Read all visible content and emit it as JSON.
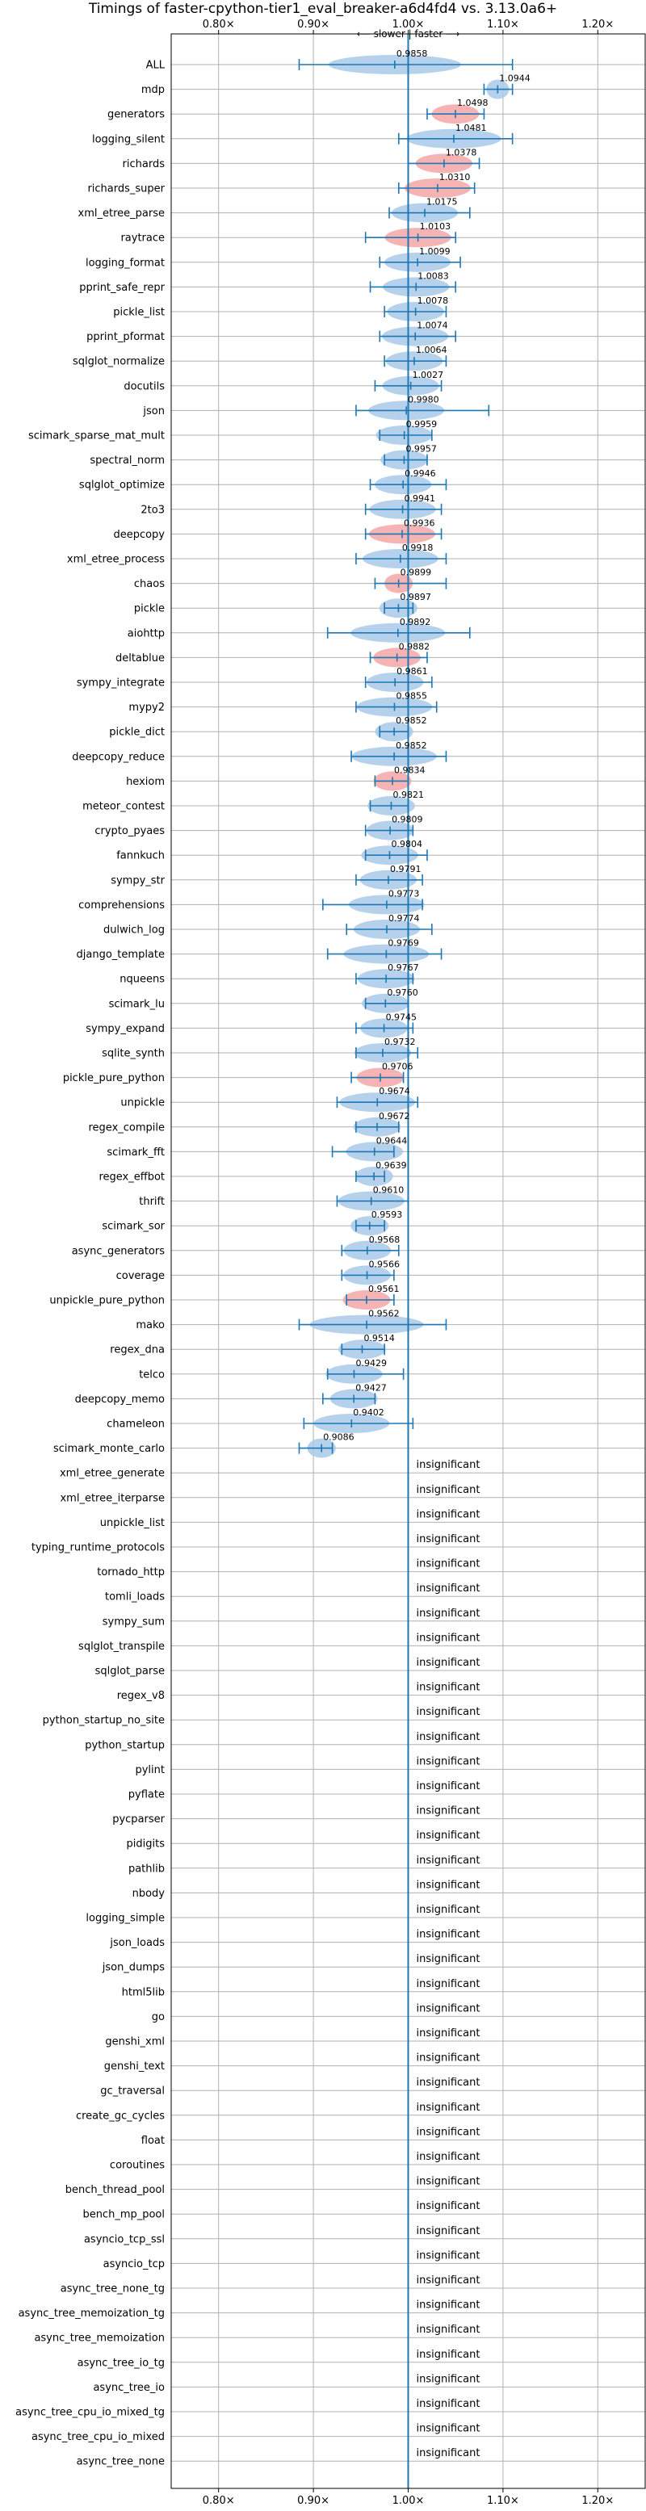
{
  "chart_data": {
    "type": "violin",
    "title": "Timings of faster-cpython-tier1_eval_breaker-a6d4fd4 vs. 3.13.0a6+",
    "direction_label": "⟵ slower | faster ⟶",
    "xlim": [
      0.75,
      1.25
    ],
    "x_ticks": [
      {
        "value": 0.8,
        "label": "0.80×"
      },
      {
        "value": 0.9,
        "label": "0.90×"
      },
      {
        "value": 1.0,
        "label": "1.00×"
      },
      {
        "value": 1.1,
        "label": "1.10×"
      },
      {
        "value": 1.2,
        "label": "1.20×"
      }
    ],
    "grid": true,
    "reference_line": 1.0,
    "insignificant_label": "insignificant",
    "colors": {
      "faster": "#f4a6a6",
      "slower": "#a9c9e8",
      "line": "#1f77b4",
      "grid": "#b0b0b0"
    },
    "benchmarks": [
      {
        "name": "ALL",
        "value": 0.9858,
        "low": 0.885,
        "high": 1.11,
        "significant": true,
        "color": "slower",
        "label": "0.9858",
        "spread": 0.07
      },
      {
        "name": "mdp",
        "value": 1.0944,
        "low": 1.08,
        "high": 1.11,
        "significant": true,
        "color": "slower",
        "label": "1.0944",
        "spread": 0.012
      },
      {
        "name": "generators",
        "value": 1.0498,
        "low": 1.02,
        "high": 1.08,
        "significant": true,
        "color": "faster",
        "label": "1.0498",
        "spread": 0.025
      },
      {
        "name": "logging_silent",
        "value": 1.0481,
        "low": 0.99,
        "high": 1.11,
        "significant": true,
        "color": "slower",
        "label": "1.0481",
        "spread": 0.05
      },
      {
        "name": "richards",
        "value": 1.0378,
        "low": 1.0,
        "high": 1.075,
        "significant": true,
        "color": "faster",
        "label": "1.0378",
        "spread": 0.03
      },
      {
        "name": "richards_super",
        "value": 1.031,
        "low": 0.99,
        "high": 1.07,
        "significant": true,
        "color": "faster",
        "label": "1.0310",
        "spread": 0.035
      },
      {
        "name": "xml_etree_parse",
        "value": 1.0175,
        "low": 0.98,
        "high": 1.065,
        "significant": true,
        "color": "slower",
        "label": "1.0175",
        "spread": 0.035
      },
      {
        "name": "raytrace",
        "value": 1.0103,
        "low": 0.955,
        "high": 1.05,
        "significant": true,
        "color": "faster",
        "label": "1.0103",
        "spread": 0.035
      },
      {
        "name": "logging_format",
        "value": 1.0099,
        "low": 0.97,
        "high": 1.055,
        "significant": true,
        "color": "slower",
        "label": "1.0099",
        "spread": 0.035
      },
      {
        "name": "pprint_safe_repr",
        "value": 1.0083,
        "low": 0.96,
        "high": 1.05,
        "significant": true,
        "color": "slower",
        "label": "1.0083",
        "spread": 0.035
      },
      {
        "name": "pickle_list",
        "value": 1.0078,
        "low": 0.975,
        "high": 1.04,
        "significant": true,
        "color": "slower",
        "label": "1.0078",
        "spread": 0.03
      },
      {
        "name": "pprint_pformat",
        "value": 1.0074,
        "low": 0.97,
        "high": 1.05,
        "significant": true,
        "color": "slower",
        "label": "1.0074",
        "spread": 0.035
      },
      {
        "name": "sqlglot_normalize",
        "value": 1.0064,
        "low": 0.975,
        "high": 1.04,
        "significant": true,
        "color": "slower",
        "label": "1.0064",
        "spread": 0.03
      },
      {
        "name": "docutils",
        "value": 1.0027,
        "low": 0.965,
        "high": 1.035,
        "significant": true,
        "color": "slower",
        "label": "1.0027",
        "spread": 0.03
      },
      {
        "name": "json",
        "value": 0.998,
        "low": 0.945,
        "high": 1.085,
        "significant": true,
        "color": "slower",
        "label": "0.9980",
        "spread": 0.04
      },
      {
        "name": "scimark_sparse_mat_mult",
        "value": 0.9959,
        "low": 0.97,
        "high": 1.025,
        "significant": true,
        "color": "slower",
        "label": "0.9959",
        "spread": 0.03
      },
      {
        "name": "spectral_norm",
        "value": 0.9957,
        "low": 0.975,
        "high": 1.02,
        "significant": true,
        "color": "slower",
        "label": "0.9957",
        "spread": 0.025
      },
      {
        "name": "sqlglot_optimize",
        "value": 0.9946,
        "low": 0.96,
        "high": 1.04,
        "significant": true,
        "color": "slower",
        "label": "0.9946",
        "spread": 0.03
      },
      {
        "name": "2to3",
        "value": 0.9941,
        "low": 0.955,
        "high": 1.035,
        "significant": true,
        "color": "slower",
        "label": "0.9941",
        "spread": 0.035
      },
      {
        "name": "deepcopy",
        "value": 0.9936,
        "low": 0.955,
        "high": 1.035,
        "significant": true,
        "color": "faster",
        "label": "0.9936",
        "spread": 0.035
      },
      {
        "name": "xml_etree_process",
        "value": 0.9918,
        "low": 0.945,
        "high": 1.04,
        "significant": true,
        "color": "slower",
        "label": "0.9918",
        "spread": 0.04
      },
      {
        "name": "chaos",
        "value": 0.9899,
        "low": 0.965,
        "high": 1.04,
        "significant": true,
        "color": "faster",
        "label": "0.9899",
        "spread": 0.015
      },
      {
        "name": "pickle",
        "value": 0.9897,
        "low": 0.975,
        "high": 1.005,
        "significant": true,
        "color": "slower",
        "label": "0.9897",
        "spread": 0.02
      },
      {
        "name": "aiohttp",
        "value": 0.9892,
        "low": 0.915,
        "high": 1.065,
        "significant": true,
        "color": "slower",
        "label": "0.9892",
        "spread": 0.05
      },
      {
        "name": "deltablue",
        "value": 0.9882,
        "low": 0.96,
        "high": 1.02,
        "significant": true,
        "color": "faster",
        "label": "0.9882",
        "spread": 0.025
      },
      {
        "name": "sympy_integrate",
        "value": 0.9861,
        "low": 0.955,
        "high": 1.025,
        "significant": true,
        "color": "slower",
        "label": "0.9861",
        "spread": 0.03
      },
      {
        "name": "mypy2",
        "value": 0.9855,
        "low": 0.945,
        "high": 1.03,
        "significant": true,
        "color": "slower",
        "label": "0.9855",
        "spread": 0.04
      },
      {
        "name": "pickle_dict",
        "value": 0.9852,
        "low": 0.97,
        "high": 1.0,
        "significant": true,
        "color": "slower",
        "label": "0.9852",
        "spread": 0.02
      },
      {
        "name": "deepcopy_reduce",
        "value": 0.9852,
        "low": 0.94,
        "high": 1.04,
        "significant": true,
        "color": "slower",
        "label": "0.9852",
        "spread": 0.045
      },
      {
        "name": "hexiom",
        "value": 0.9834,
        "low": 0.965,
        "high": 1.0,
        "significant": true,
        "color": "faster",
        "label": "0.9834",
        "spread": 0.02
      },
      {
        "name": "meteor_contest",
        "value": 0.9821,
        "low": 0.96,
        "high": 1.0,
        "significant": true,
        "color": "slower",
        "label": "0.9821",
        "spread": 0.025
      },
      {
        "name": "crypto_pyaes",
        "value": 0.9809,
        "low": 0.955,
        "high": 1.005,
        "significant": true,
        "color": "slower",
        "label": "0.9809",
        "spread": 0.025
      },
      {
        "name": "fannkuch",
        "value": 0.9804,
        "low": 0.955,
        "high": 1.02,
        "significant": true,
        "color": "slower",
        "label": "0.9804",
        "spread": 0.03
      },
      {
        "name": "sympy_str",
        "value": 0.9791,
        "low": 0.945,
        "high": 1.015,
        "significant": true,
        "color": "slower",
        "label": "0.9791",
        "spread": 0.03
      },
      {
        "name": "comprehensions",
        "value": 0.9773,
        "low": 0.91,
        "high": 1.015,
        "significant": true,
        "color": "slower",
        "label": "0.9773",
        "spread": 0.04
      },
      {
        "name": "dulwich_log",
        "value": 0.9774,
        "low": 0.935,
        "high": 1.025,
        "significant": true,
        "color": "slower",
        "label": "0.9774",
        "spread": 0.035
      },
      {
        "name": "django_template",
        "value": 0.9769,
        "low": 0.915,
        "high": 1.035,
        "significant": true,
        "color": "slower",
        "label": "0.9769",
        "spread": 0.045
      },
      {
        "name": "nqueens",
        "value": 0.9767,
        "low": 0.945,
        "high": 1.005,
        "significant": true,
        "color": "slower",
        "label": "0.9767",
        "spread": 0.03
      },
      {
        "name": "scimark_lu",
        "value": 0.976,
        "low": 0.955,
        "high": 1.0,
        "significant": true,
        "color": "slower",
        "label": "0.9760",
        "spread": 0.025
      },
      {
        "name": "sympy_expand",
        "value": 0.9745,
        "low": 0.945,
        "high": 1.005,
        "significant": true,
        "color": "slower",
        "label": "0.9745",
        "spread": 0.025
      },
      {
        "name": "sqlite_synth",
        "value": 0.9732,
        "low": 0.945,
        "high": 1.01,
        "significant": true,
        "color": "slower",
        "label": "0.9732",
        "spread": 0.03
      },
      {
        "name": "pickle_pure_python",
        "value": 0.9706,
        "low": 0.94,
        "high": 0.995,
        "significant": true,
        "color": "faster",
        "label": "0.9706",
        "spread": 0.025
      },
      {
        "name": "unpickle",
        "value": 0.9674,
        "low": 0.925,
        "high": 1.01,
        "significant": true,
        "color": "slower",
        "label": "0.9674",
        "spread": 0.04
      },
      {
        "name": "regex_compile",
        "value": 0.9672,
        "low": 0.945,
        "high": 0.99,
        "significant": true,
        "color": "slower",
        "label": "0.9672",
        "spread": 0.025
      },
      {
        "name": "scimark_fft",
        "value": 0.9644,
        "low": 0.92,
        "high": 0.985,
        "significant": true,
        "color": "slower",
        "label": "0.9644",
        "spread": 0.03
      },
      {
        "name": "regex_effbot",
        "value": 0.9639,
        "low": 0.945,
        "high": 0.975,
        "significant": true,
        "color": "slower",
        "label": "0.9639",
        "spread": 0.02
      },
      {
        "name": "thrift",
        "value": 0.961,
        "low": 0.925,
        "high": 1.0,
        "significant": true,
        "color": "slower",
        "label": "0.9610",
        "spread": 0.035
      },
      {
        "name": "scimark_sor",
        "value": 0.9593,
        "low": 0.945,
        "high": 0.975,
        "significant": true,
        "color": "slower",
        "label": "0.9593",
        "spread": 0.02
      },
      {
        "name": "async_generators",
        "value": 0.9568,
        "low": 0.93,
        "high": 0.99,
        "significant": true,
        "color": "slower",
        "label": "0.9568",
        "spread": 0.025
      },
      {
        "name": "coverage",
        "value": 0.9566,
        "low": 0.93,
        "high": 0.985,
        "significant": true,
        "color": "slower",
        "label": "0.9566",
        "spread": 0.025
      },
      {
        "name": "unpickle_pure_python",
        "value": 0.9561,
        "low": 0.935,
        "high": 0.985,
        "significant": true,
        "color": "faster",
        "label": "0.9561",
        "spread": 0.025
      },
      {
        "name": "mako",
        "value": 0.9562,
        "low": 0.885,
        "high": 1.04,
        "significant": true,
        "color": "slower",
        "label": "0.9562",
        "spread": 0.06
      },
      {
        "name": "regex_dna",
        "value": 0.9514,
        "low": 0.93,
        "high": 0.975,
        "significant": true,
        "color": "slower",
        "label": "0.9514",
        "spread": 0.025
      },
      {
        "name": "telco",
        "value": 0.9429,
        "low": 0.915,
        "high": 0.995,
        "significant": true,
        "color": "slower",
        "label": "0.9429",
        "spread": 0.03
      },
      {
        "name": "deepcopy_memo",
        "value": 0.9427,
        "low": 0.91,
        "high": 0.965,
        "significant": true,
        "color": "slower",
        "label": "0.9427",
        "spread": 0.025
      },
      {
        "name": "chameleon",
        "value": 0.9402,
        "low": 0.89,
        "high": 1.005,
        "significant": true,
        "color": "slower",
        "label": "0.9402",
        "spread": 0.04
      },
      {
        "name": "scimark_monte_carlo",
        "value": 0.9086,
        "low": 0.885,
        "high": 0.92,
        "significant": true,
        "color": "slower",
        "label": "0.9086",
        "spread": 0.015
      },
      {
        "name": "xml_etree_generate",
        "significant": false
      },
      {
        "name": "xml_etree_iterparse",
        "significant": false
      },
      {
        "name": "unpickle_list",
        "significant": false
      },
      {
        "name": "typing_runtime_protocols",
        "significant": false
      },
      {
        "name": "tornado_http",
        "significant": false
      },
      {
        "name": "tomli_loads",
        "significant": false
      },
      {
        "name": "sympy_sum",
        "significant": false
      },
      {
        "name": "sqlglot_transpile",
        "significant": false
      },
      {
        "name": "sqlglot_parse",
        "significant": false
      },
      {
        "name": "regex_v8",
        "significant": false
      },
      {
        "name": "python_startup_no_site",
        "significant": false
      },
      {
        "name": "python_startup",
        "significant": false
      },
      {
        "name": "pylint",
        "significant": false
      },
      {
        "name": "pyflate",
        "significant": false
      },
      {
        "name": "pycparser",
        "significant": false
      },
      {
        "name": "pidigits",
        "significant": false
      },
      {
        "name": "pathlib",
        "significant": false
      },
      {
        "name": "nbody",
        "significant": false
      },
      {
        "name": "logging_simple",
        "significant": false
      },
      {
        "name": "json_loads",
        "significant": false
      },
      {
        "name": "json_dumps",
        "significant": false
      },
      {
        "name": "html5lib",
        "significant": false
      },
      {
        "name": "go",
        "significant": false
      },
      {
        "name": "genshi_xml",
        "significant": false
      },
      {
        "name": "genshi_text",
        "significant": false
      },
      {
        "name": "gc_traversal",
        "significant": false
      },
      {
        "name": "create_gc_cycles",
        "significant": false
      },
      {
        "name": "float",
        "significant": false
      },
      {
        "name": "coroutines",
        "significant": false
      },
      {
        "name": "bench_thread_pool",
        "significant": false
      },
      {
        "name": "bench_mp_pool",
        "significant": false
      },
      {
        "name": "asyncio_tcp_ssl",
        "significant": false
      },
      {
        "name": "asyncio_tcp",
        "significant": false
      },
      {
        "name": "async_tree_none_tg",
        "significant": false
      },
      {
        "name": "async_tree_memoization_tg",
        "significant": false
      },
      {
        "name": "async_tree_memoization",
        "significant": false
      },
      {
        "name": "async_tree_io_tg",
        "significant": false
      },
      {
        "name": "async_tree_io",
        "significant": false
      },
      {
        "name": "async_tree_cpu_io_mixed_tg",
        "significant": false
      },
      {
        "name": "async_tree_cpu_io_mixed",
        "significant": false
      },
      {
        "name": "async_tree_none",
        "significant": false
      }
    ]
  }
}
